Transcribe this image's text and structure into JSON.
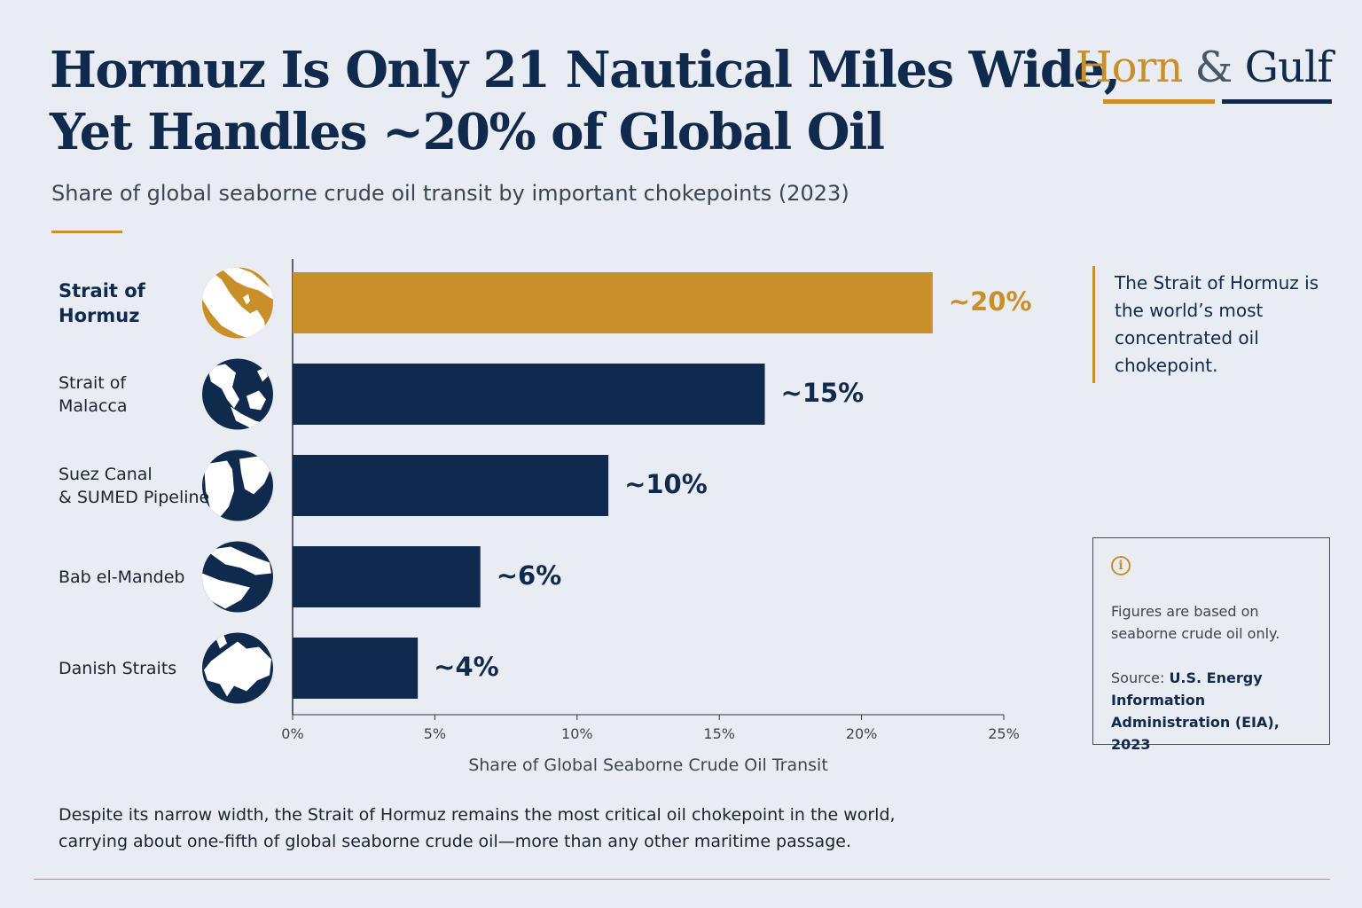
{
  "header": {
    "title_line1": "Hormuz Is Only 21 Nautical Miles Wide,",
    "title_line2": "Yet Handles ~20% of Global Oil",
    "subtitle": "Share of global seaborne crude oil transit by important chokepoints (2023)"
  },
  "logo": {
    "word1": "Horn",
    "amp": "&",
    "word2": "Gulf"
  },
  "chart_data": {
    "type": "bar",
    "orientation": "horizontal",
    "title": "Hormuz Is Only 21 Nautical Miles Wide, Yet Handles ~20% of Global Oil",
    "subtitle": "Share of global seaborne crude oil transit by important chokepoints (2023)",
    "categories": [
      "Strait of\nHormuz",
      "Strait of\nMalacca",
      "Suez Canal\n& SUMED Pipeline",
      "Bab el-Mandeb",
      "Danish Straits"
    ],
    "values": [
      22.5,
      16.6,
      11.1,
      6.6,
      4.4
    ],
    "value_labels": [
      "~20%",
      "~15%",
      "~10%",
      "~6%",
      "~4%"
    ],
    "highlight_index": 0,
    "xlabel": "Share of Global Seaborne Crude Oil Transit",
    "ylabel": "",
    "xlim": [
      0,
      25
    ],
    "x_ticks": [
      0,
      5,
      10,
      15,
      20,
      25
    ],
    "x_tick_labels": [
      "0%",
      "5%",
      "10%",
      "15%",
      "20%",
      "25%"
    ],
    "grid": false,
    "legend": "none",
    "colors": {
      "highlight": "#c98f2a",
      "default": "#102a4d"
    }
  },
  "icons": [
    "persian-gulf-map-icon",
    "southeast-asia-map-icon",
    "suez-map-icon",
    "red-sea-map-icon",
    "europe-map-icon"
  ],
  "callout": {
    "text": "The Strait of Hormuz is the world’s most concentrated oil chokepoint."
  },
  "note": {
    "icon": "info-icon",
    "text": "Figures are based on seaborne crude oil only.",
    "source_prefix": "Source: ",
    "source_name": "U.S. Energy Information Administration (EIA), 2023"
  },
  "takeaway": "Despite its narrow width, the Strait of Hormuz remains the most critical oil chokepoint in the world, carrying about one-fifth of global seaborne crude oil—more than any other maritime passage."
}
